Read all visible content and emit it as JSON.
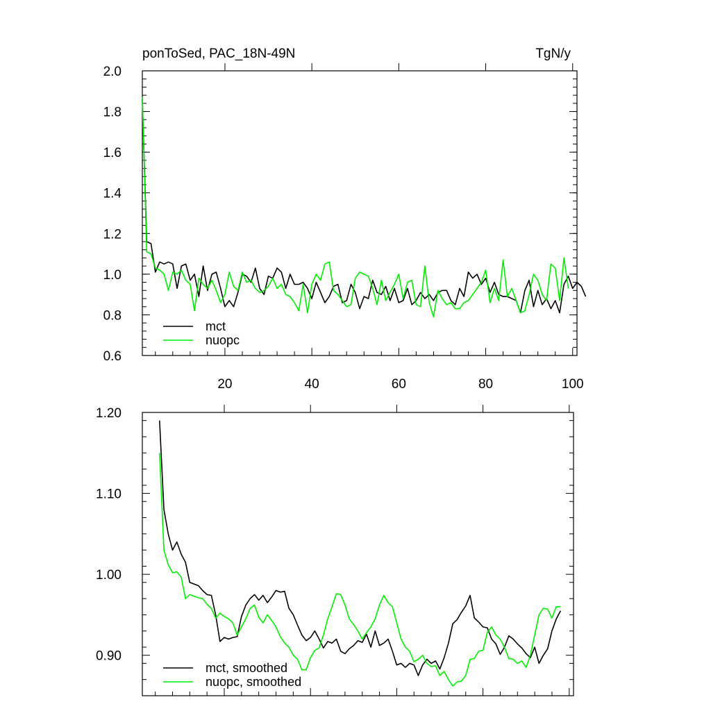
{
  "chart_data": [
    {
      "type": "line",
      "title": "ponToSed, PAC_18N-49N",
      "units": "TgN/y",
      "xlim": [
        1,
        101
      ],
      "ylim": [
        0.6,
        2.0
      ],
      "yticks": [
        "0.6",
        "0.8",
        "1.0",
        "1.2",
        "1.4",
        "1.6",
        "1.8",
        "2.0"
      ],
      "xticks": [
        "20",
        "40",
        "60",
        "80",
        "100"
      ],
      "legend": "bottom-left",
      "series": [
        {
          "name": "mct",
          "color": "#000000",
          "x_start": 1,
          "values": [
            1.86,
            1.16,
            1.15,
            1.01,
            1.06,
            1.05,
            1.06,
            1.05,
            0.93,
            1.04,
            1.05,
            0.97,
            1.0,
            0.89,
            1.04,
            0.92,
            1.0,
            1.01,
            0.93,
            0.84,
            0.87,
            0.84,
            0.91,
            1.0,
            0.99,
            0.96,
            1.03,
            0.93,
            0.9,
            0.99,
            0.98,
            1.03,
            1.01,
            0.93,
            1.0,
            0.95,
            0.95,
            0.96,
            0.93,
            0.88,
            0.96,
            0.91,
            0.86,
            0.89,
            0.94,
            0.95,
            0.86,
            0.87,
            0.95,
            0.91,
            0.83,
            0.89,
            0.88,
            0.97,
            0.91,
            0.9,
            0.94,
            0.87,
            0.93,
            0.86,
            0.87,
            0.93,
            0.85,
            0.87,
            0.91,
            0.88,
            0.9,
            0.87,
            0.91,
            0.92,
            0.92,
            0.87,
            0.85,
            0.93,
            0.89,
            1.01,
            0.98,
            1.0,
            0.95,
            0.98,
            0.91,
            0.96,
            0.9,
            0.89,
            0.89,
            0.88,
            0.87,
            0.81,
            0.92,
            0.97,
            0.84,
            0.92,
            0.85,
            0.88,
            0.83,
            0.87,
            0.81,
            0.95,
            0.99,
            0.93,
            0.96,
            0.94,
            0.89
          ]
        },
        {
          "name": "nuopc",
          "color": "#00ee00",
          "x_start": 1,
          "values": [
            1.87,
            1.11,
            1.1,
            1.03,
            1.02,
            1.0,
            0.92,
            1.01,
            1.0,
            1.02,
            0.97,
            0.95,
            0.82,
            0.98,
            0.95,
            0.93,
            0.97,
            0.92,
            0.86,
            0.9,
            1.01,
            0.94,
            0.92,
            1.01,
            0.96,
            0.97,
            0.93,
            0.91,
            0.92,
            0.94,
            0.98,
            0.93,
            0.95,
            0.9,
            0.89,
            0.86,
            0.82,
            0.95,
            0.81,
            0.95,
            1.0,
            0.97,
            1.05,
            1.06,
            0.92,
            0.9,
            0.87,
            0.84,
            0.85,
            0.98,
            1.01,
            1.0,
            0.99,
            0.93,
            0.85,
            0.97,
            0.87,
            0.91,
            0.95,
            1.0,
            0.88,
            0.96,
            0.97,
            0.85,
            0.84,
            1.04,
            0.86,
            0.79,
            0.92,
            0.88,
            0.85,
            0.86,
            0.83,
            0.83,
            0.86,
            0.87,
            0.9,
            0.93,
            0.96,
            1.02,
            0.86,
            0.93,
            0.87,
            1.07,
            0.89,
            0.93,
            0.87,
            0.81,
            0.82,
            0.9,
            1.0,
            0.97,
            0.9,
            0.87,
            1.05,
            1.03,
            0.87,
            1.08,
            0.93
          ]
        }
      ]
    },
    {
      "type": "line",
      "title": "",
      "xlim": [
        1,
        101
      ],
      "ylim": [
        0.85,
        1.2
      ],
      "yticks": [
        "0.90",
        "1.00",
        "1.10",
        "1.20"
      ],
      "legend": "bottom-left",
      "series": [
        {
          "name": "mct, smoothed",
          "color": "#000000",
          "x_start": 5,
          "values": [
            1.19,
            1.08,
            1.05,
            1.03,
            1.04,
            1.025,
            1.015,
            0.99,
            0.988,
            0.986,
            0.98,
            0.975,
            0.974,
            0.95,
            0.917,
            0.922,
            0.92,
            0.922,
            0.923,
            0.948,
            0.962,
            0.97,
            0.975,
            0.968,
            0.974,
            0.965,
            0.972,
            0.98,
            0.978,
            0.979,
            0.958,
            0.95,
            0.937,
            0.925,
            0.918,
            0.922,
            0.93,
            0.92,
            0.909,
            0.917,
            0.915,
            0.92,
            0.905,
            0.902,
            0.908,
            0.912,
            0.918,
            0.916,
            0.926,
            0.91,
            0.93,
            0.912,
            0.915,
            0.92,
            0.905,
            0.888,
            0.89,
            0.885,
            0.89,
            0.888,
            0.875,
            0.888,
            0.895,
            0.89,
            0.893,
            0.883,
            0.897,
            0.915,
            0.939,
            0.944,
            0.953,
            0.961,
            0.974,
            0.946,
            0.941,
            0.935,
            0.934,
            0.92,
            0.914,
            0.901,
            0.91,
            0.924,
            0.92,
            0.914,
            0.909,
            0.902,
            0.897,
            0.91,
            0.89,
            0.9,
            0.908,
            0.93,
            0.945,
            0.955
          ]
        },
        {
          "name": "nuopc, smoothed",
          "color": "#00ee00",
          "x_start": 5,
          "values": [
            1.15,
            1.03,
            1.012,
            1.002,
            1.003,
            0.997,
            0.97,
            0.975,
            0.973,
            0.971,
            0.97,
            0.963,
            0.958,
            0.946,
            0.952,
            0.948,
            0.945,
            0.94,
            0.925,
            0.935,
            0.945,
            0.958,
            0.962,
            0.947,
            0.94,
            0.95,
            0.943,
            0.935,
            0.923,
            0.915,
            0.91,
            0.9,
            0.895,
            0.882,
            0.882,
            0.897,
            0.906,
            0.909,
            0.925,
            0.945,
            0.96,
            0.976,
            0.975,
            0.962,
            0.945,
            0.938,
            0.93,
            0.92,
            0.928,
            0.935,
            0.945,
            0.962,
            0.974,
            0.965,
            0.96,
            0.94,
            0.92,
            0.91,
            0.905,
            0.892,
            0.895,
            0.9,
            0.89,
            0.886,
            0.887,
            0.875,
            0.88,
            0.87,
            0.862,
            0.867,
            0.868,
            0.875,
            0.895,
            0.896,
            0.905,
            0.906,
            0.928,
            0.935,
            0.925,
            0.92,
            0.91,
            0.896,
            0.895,
            0.89,
            0.893,
            0.885,
            0.9,
            0.925,
            0.95,
            0.958,
            0.957,
            0.946,
            0.96,
            0.96
          ]
        }
      ]
    }
  ]
}
